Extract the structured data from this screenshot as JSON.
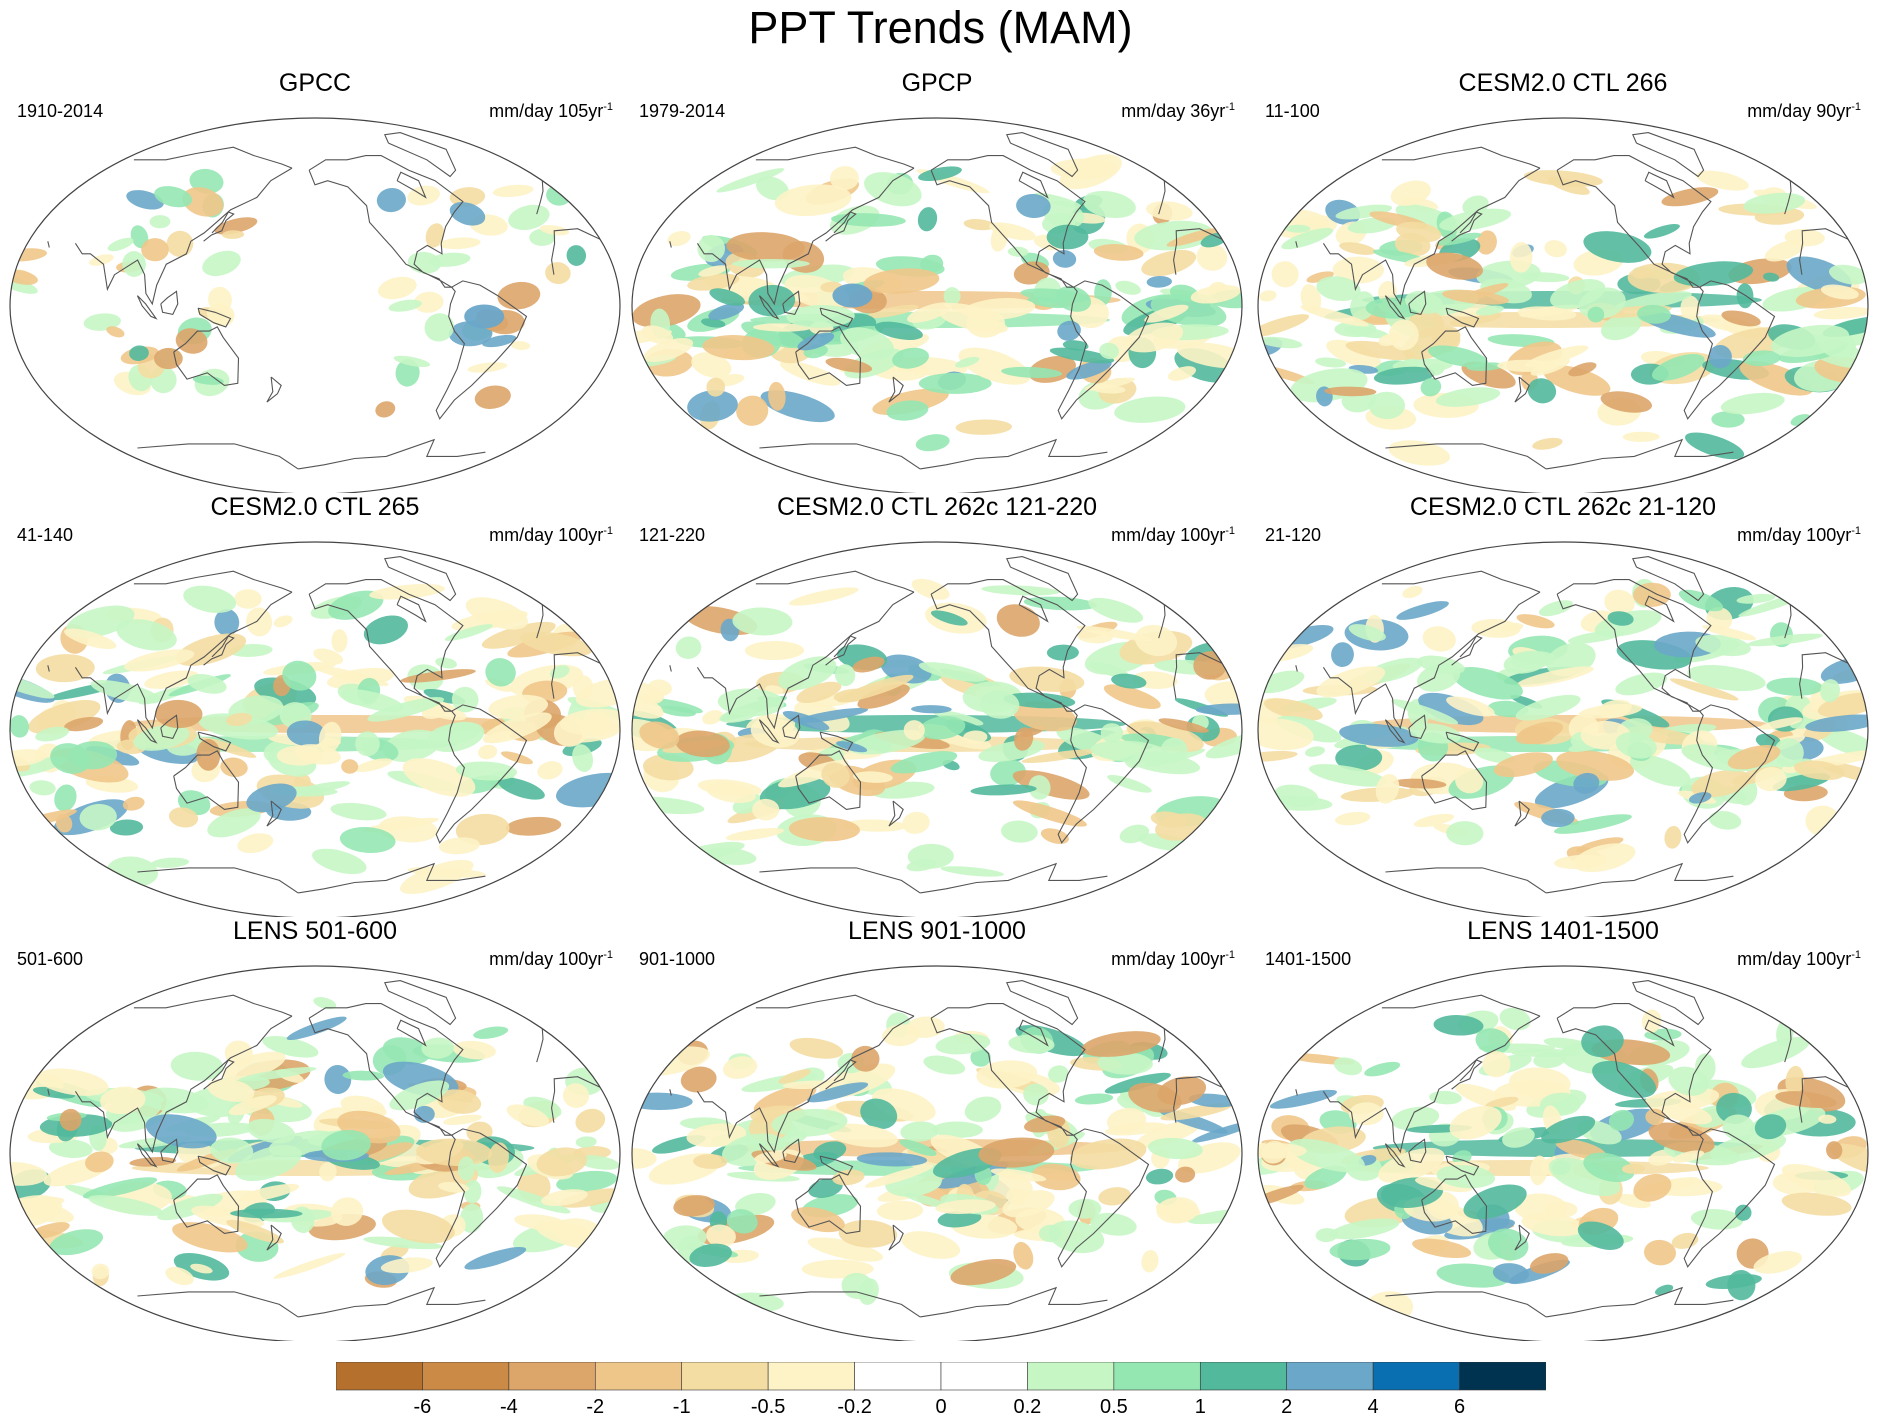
{
  "figure": {
    "title": "PPT Trends (MAM)"
  },
  "panels": [
    {
      "title": "GPCC",
      "period": "1910-2014",
      "units": "mm/day 105yr",
      "units_exp": "-1",
      "coverage": "land"
    },
    {
      "title": "GPCP",
      "period": "1979-2014",
      "units": "mm/day 36yr",
      "units_exp": "-1",
      "coverage": "global"
    },
    {
      "title": "CESM2.0 CTL 266",
      "period": "11-100",
      "units": "mm/day 90yr",
      "units_exp": "-1",
      "coverage": "global"
    },
    {
      "title": "CESM2.0 CTL 265",
      "period": "41-140",
      "units": "mm/day 100yr",
      "units_exp": "-1",
      "coverage": "global"
    },
    {
      "title": "CESM2.0 CTL 262c 121-220",
      "period": "121-220",
      "units": "mm/day 100yr",
      "units_exp": "-1",
      "coverage": "global"
    },
    {
      "title": "CESM2.0 CTL 262c 21-120",
      "period": "21-120",
      "units": "mm/day 100yr",
      "units_exp": "-1",
      "coverage": "global"
    },
    {
      "title": "LENS 501-600",
      "period": "501-600",
      "units": "mm/day 100yr",
      "units_exp": "-1",
      "coverage": "global"
    },
    {
      "title": "LENS 901-1000",
      "period": "901-1000",
      "units": "mm/day 100yr",
      "units_exp": "-1",
      "coverage": "global"
    },
    {
      "title": "LENS 1401-1500",
      "period": "1401-1500",
      "units": "mm/day 100yr",
      "units_exp": "-1",
      "coverage": "global"
    }
  ],
  "colorbar": {
    "labels": [
      "-6",
      "-4",
      "-2",
      "-1",
      "-0.5",
      "-0.2",
      "0",
      "0.2",
      "0.5",
      "1",
      "2",
      "4",
      "6"
    ],
    "colors": [
      "#b5702e",
      "#cb8a45",
      "#dca56a",
      "#efc68a",
      "#f4dda2",
      "#fdf3c7",
      "#ffffff",
      "#ffffff",
      "#c7f6c5",
      "#95e7b2",
      "#52b99c",
      "#6aa7c9",
      "#0a6fb0",
      "#00334f"
    ]
  },
  "style": {
    "coastline": "#555555",
    "outline": "#444444"
  }
}
